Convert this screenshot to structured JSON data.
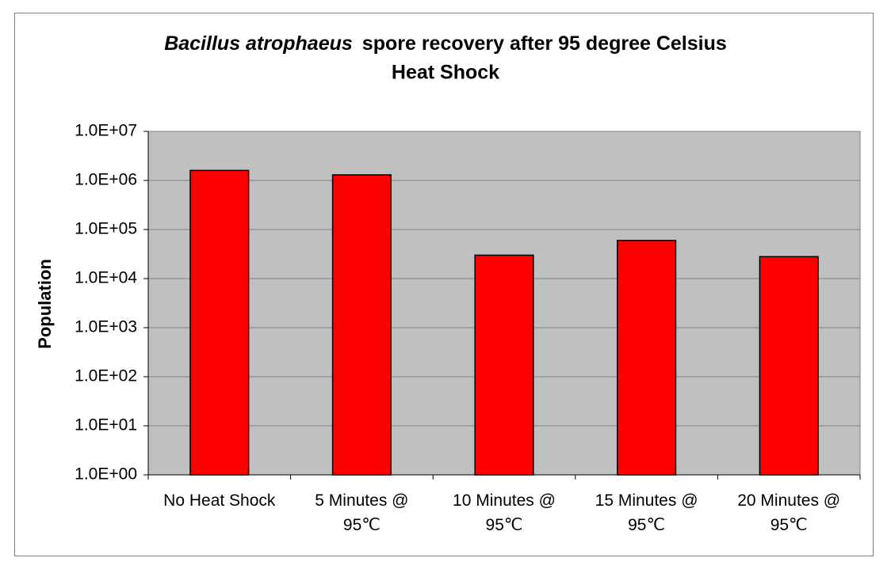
{
  "chart_data": {
    "type": "bar",
    "title": [
      "Bacillus atrophaeus",
      "spore recovery after 95 degree Celsius",
      "Heat Shock"
    ],
    "y_label": "Population",
    "categories": [
      "No Heat Shock",
      "5 Minutes @ 95℃",
      "10 Minutes @ 95℃",
      "15 Minutes @ 95℃",
      "20 Minutes @ 95℃"
    ],
    "values": [
      1600000,
      1300000,
      30000,
      60000,
      28000
    ],
    "color": "#ff0000",
    "log_scale": true,
    "ylim": [
      1,
      10000000
    ],
    "yticks": [
      {
        "value": 1,
        "label": "1.0E+00"
      },
      {
        "value": 10,
        "label": "1.0E+01"
      },
      {
        "value": 100,
        "label": "1.0E+02"
      },
      {
        "value": 1000,
        "label": "1.0E+03"
      },
      {
        "value": 10000,
        "label": "1.0E+04"
      },
      {
        "value": 100000,
        "label": "1.0E+05"
      },
      {
        "value": 1000000,
        "label": "1.0E+06"
      },
      {
        "value": 10000000,
        "label": "1.0E+07"
      }
    ],
    "grid": true
  }
}
